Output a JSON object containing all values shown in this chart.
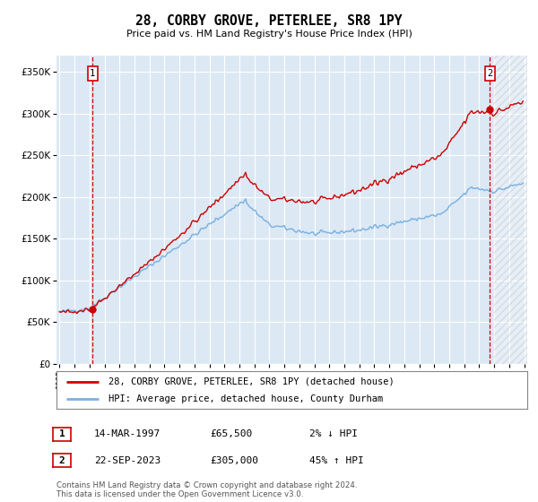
{
  "title": "28, CORBY GROVE, PETERLEE, SR8 1PY",
  "subtitle": "Price paid vs. HM Land Registry's House Price Index (HPI)",
  "legend_line1": "28, CORBY GROVE, PETERLEE, SR8 1PY (detached house)",
  "legend_line2": "HPI: Average price, detached house, County Durham",
  "transaction1_date": "14-MAR-1997",
  "transaction1_price": 65500,
  "transaction1_label": "2% ↓ HPI",
  "transaction2_date": "22-SEP-2023",
  "transaction2_price": 305000,
  "transaction2_label": "45% ↑ HPI",
  "footnote1": "Contains HM Land Registry data © Crown copyright and database right 2024.",
  "footnote2": "This data is licensed under the Open Government Licence v3.0.",
  "hpi_color": "#7ab0e0",
  "price_color": "#cc0000",
  "bg_color": "#dce9f5",
  "grid_color": "#ffffff",
  "ylim": [
    0,
    370000
  ],
  "yticks": [
    0,
    50000,
    100000,
    150000,
    200000,
    250000,
    300000,
    350000
  ],
  "x_start_year": 1995,
  "x_end_year": 2026,
  "t1_time": 1997.208,
  "t2_time": 2023.708
}
